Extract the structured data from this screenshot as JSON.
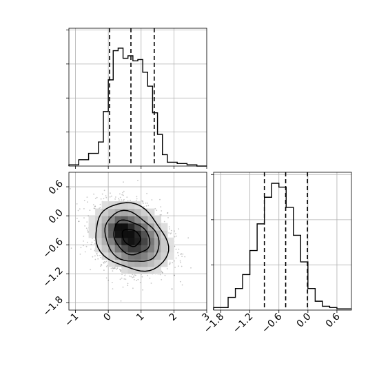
{
  "chart_data": {
    "type": "corner",
    "parameters": [
      "",
      ""
    ],
    "panels": [
      {
        "kind": "histogram",
        "parameter_index": 0,
        "xlim": [
          -1.2,
          3.0
        ],
        "bin_edges": [
          -1.2,
          -0.9,
          -0.6,
          -0.3,
          -0.15,
          0.0,
          0.15,
          0.3,
          0.45,
          0.6,
          0.75,
          0.9,
          1.05,
          1.2,
          1.35,
          1.5,
          1.65,
          1.8,
          2.1,
          2.4,
          2.7,
          3.0
        ],
        "counts": [
          0.01,
          0.05,
          0.1,
          0.19,
          0.43,
          0.68,
          0.91,
          0.93,
          0.85,
          0.87,
          0.83,
          0.84,
          0.74,
          0.63,
          0.42,
          0.25,
          0.09,
          0.03,
          0.02,
          0.01,
          0.0
        ],
        "quantiles": [
          0.04,
          0.69,
          1.4
        ],
        "grid": true
      },
      {
        "kind": "scatter-density",
        "x_parameter_index": 0,
        "y_parameter_index": 1,
        "xlim": [
          -1.2,
          3.0
        ],
        "ylim": [
          -1.95,
          0.9
        ],
        "center": [
          0.7,
          -0.45
        ],
        "spread": [
          0.55,
          0.35
        ],
        "correlation": -0.25,
        "contour_levels": [
          0.5,
          1.0,
          1.5,
          2.0
        ],
        "grid": true
      },
      {
        "kind": "histogram",
        "parameter_index": 1,
        "xlim": [
          -1.95,
          0.9
        ],
        "bin_edges": [
          -1.95,
          -1.65,
          -1.5,
          -1.35,
          -1.2,
          -1.05,
          -0.9,
          -0.75,
          -0.6,
          -0.45,
          -0.3,
          -0.15,
          0.0,
          0.15,
          0.3,
          0.45,
          0.6,
          0.9
        ],
        "counts": [
          0.02,
          0.1,
          0.17,
          0.28,
          0.47,
          0.68,
          0.89,
          1.0,
          0.97,
          0.81,
          0.59,
          0.38,
          0.17,
          0.07,
          0.03,
          0.02,
          0.01
        ],
        "quantiles": [
          -0.9,
          -0.46,
          -0.01
        ],
        "grid": true
      }
    ],
    "x_ticks_param0": [
      "−1",
      "0",
      "1",
      "2",
      "3"
    ],
    "y_ticks_param1": [
      "0.6",
      "0.0",
      "−0.6",
      "−1.2",
      "−1.8"
    ],
    "x_ticks_param1": [
      "−1.8",
      "−1.2",
      "−0.6",
      "0.0",
      "0.6"
    ]
  }
}
